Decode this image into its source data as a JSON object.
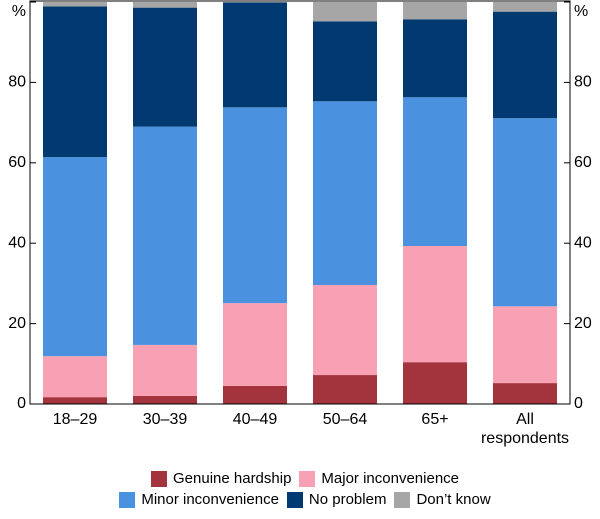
{
  "chart_data": {
    "type": "stacked_bar",
    "categories": [
      "18–29",
      "30–39",
      "40–49",
      "50–64",
      "65+",
      "All respondents"
    ],
    "series": [
      {
        "name": "Genuine hardship",
        "color": "#a3333d",
        "values": [
          1.7,
          2,
          4.5,
          7.2,
          10.4,
          5.2
        ]
      },
      {
        "name": "Major inconvenience",
        "color": "#f8a1b4",
        "values": [
          10.2,
          12.7,
          20.6,
          22.4,
          28.9,
          19.1
        ]
      },
      {
        "name": "Minor inconvenience",
        "color": "#4a92df",
        "values": [
          49.5,
          54.3,
          48.7,
          45.7,
          37,
          46.8
        ]
      },
      {
        "name": "No problem",
        "color": "#003a70",
        "values": [
          37.5,
          29.6,
          26.1,
          19.9,
          19.4,
          26.5
        ]
      },
      {
        "name": "Don’t know",
        "color": "#a6a6a6",
        "values": [
          1.1,
          1.4,
          0.1,
          4.8,
          4.3,
          2.4
        ]
      }
    ],
    "ylim": [
      0,
      100
    ],
    "yticks": [
      0,
      20,
      40,
      60,
      80,
      {
        "value": 100,
        "label": "%"
      }
    ]
  }
}
